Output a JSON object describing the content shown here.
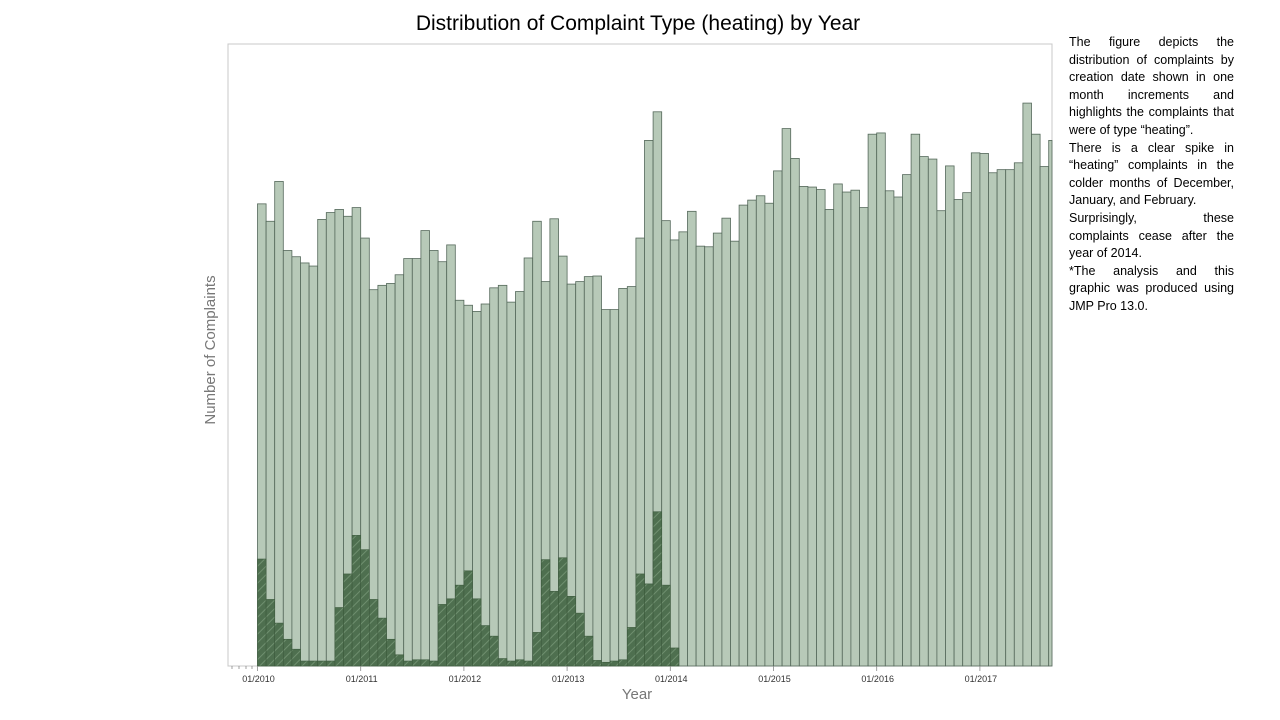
{
  "chart_data": {
    "type": "bar",
    "title": "Distribution of Complaint Type (heating) by Year",
    "xlabel": "Year",
    "ylabel": "Number of Complaints",
    "x_tick_labels": [
      "01/2010",
      "01/2011",
      "01/2012",
      "01/2013",
      "01/2014",
      "01/2015",
      "01/2016",
      "01/2017"
    ],
    "start_month": "2010-01",
    "ylim": [
      0,
      100
    ],
    "y_ticks_shown": false,
    "grid": false,
    "legend": "none",
    "colors": {
      "all_complaints": "#b7c9b8",
      "heating": "#4e6f4f",
      "bar_outline": "#54685a",
      "heating_hatch": "#3c5a3d",
      "frame": "#c8c8c8"
    },
    "series": [
      {
        "values": [
          74.3,
          71.5,
          77.9,
          66.8,
          65.8,
          64.8,
          64.3,
          71.8,
          72.9,
          73.4,
          72.3,
          73.7,
          68.8,
          60.5,
          61.2,
          61.5,
          62.9,
          65.5,
          65.5,
          70.0,
          66.8,
          65.0,
          67.7,
          58.8,
          58.0,
          57.0,
          58.2,
          60.8,
          61.2,
          58.5,
          60.2,
          65.6,
          71.5,
          61.8,
          71.9,
          65.9,
          61.4,
          61.8,
          62.6,
          62.7,
          57.3,
          57.3,
          60.7,
          61.0,
          68.8,
          84.5,
          89.1,
          71.6,
          68.5,
          69.8,
          73.1,
          67.5,
          67.4,
          69.6,
          72.0,
          68.3,
          74.1,
          74.9,
          75.6,
          74.4,
          79.6,
          86.4,
          81.6,
          77.1,
          77.0,
          76.6,
          73.4,
          77.5,
          76.2,
          76.5,
          73.7,
          85.5,
          85.7,
          76.4,
          75.4,
          79.0,
          85.5,
          81.9,
          81.5,
          73.2,
          80.4,
          75.0,
          76.1,
          82.5,
          82.4,
          79.3,
          79.8,
          79.8,
          80.9,
          90.5,
          85.5,
          80.3,
          84.5
        ]
      },
      {
        "values": [
          17.2,
          10.7,
          6.9,
          4.3,
          2.7,
          0.8,
          0.8,
          0.8,
          0.8,
          9.4,
          14.8,
          21.0,
          18.7,
          10.7,
          7.7,
          4.3,
          1.8,
          0.8,
          1.0,
          1.0,
          0.8,
          9.9,
          10.8,
          13.0,
          15.3,
          10.8,
          6.5,
          4.8,
          1.2,
          0.8,
          1.0,
          0.8,
          5.4,
          17.1,
          12.0,
          17.4,
          11.2,
          8.5,
          4.8,
          0.9,
          0.6,
          0.8,
          1.0,
          6.2,
          14.8,
          13.2,
          24.8,
          13.0,
          2.9
        ]
      }
    ]
  },
  "note": {
    "paragraphs": [
      "The figure depicts the distribution of complaints by creation date shown in one month increments and highlights the complaints that were of type “heating”.",
      "There is a clear spike in “heating” complaints in the colder months of December, January, and February.",
      "Surprisingly, these complaints cease after the year of 2014.",
      "*The analysis and this graphic was produced using JMP Pro 13.0."
    ]
  }
}
